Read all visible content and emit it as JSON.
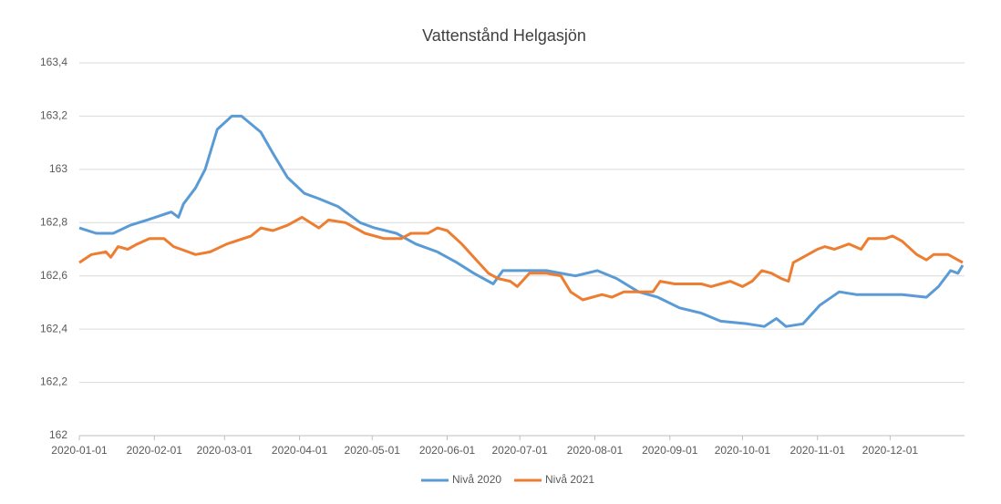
{
  "chart_data": {
    "type": "line",
    "title": "Vattenstånd Helgasjön",
    "xlim": [
      "2020-01-01",
      "2020-12-31"
    ],
    "xticks": [
      "2020-01-01",
      "2020-02-01",
      "2020-03-01",
      "2020-04-01",
      "2020-05-01",
      "2020-06-01",
      "2020-07-01",
      "2020-08-01",
      "2020-09-01",
      "2020-10-01",
      "2020-11-01",
      "2020-12-01"
    ],
    "ylim": [
      162,
      163.4
    ],
    "yticks": [
      162,
      {
        "value": 162.2,
        "label": "162,2"
      },
      {
        "value": 162.4,
        "label": "162,4"
      },
      {
        "value": 162.6,
        "label": "162,6"
      },
      {
        "value": 162.8,
        "label": "162,8"
      },
      163,
      {
        "value": 163.2,
        "label": "163,2"
      },
      {
        "value": 163.4,
        "label": "163,4"
      }
    ],
    "grid": true,
    "legend": "bottom",
    "series": [
      {
        "name": "Nivå 2020",
        "color": "#5b9bd5",
        "x": [
          "2020-01-01",
          "2020-01-08",
          "2020-01-15",
          "2020-01-22",
          "2020-01-29",
          "2020-02-08",
          "2020-02-11",
          "2020-02-13",
          "2020-02-18",
          "2020-02-22",
          "2020-02-27",
          "2020-03-04",
          "2020-03-08",
          "2020-03-16",
          "2020-03-21",
          "2020-03-27",
          "2020-04-03",
          "2020-04-09",
          "2020-04-17",
          "2020-04-26",
          "2020-05-02",
          "2020-05-11",
          "2020-05-19",
          "2020-05-28",
          "2020-06-05",
          "2020-06-12",
          "2020-06-20",
          "2020-06-24",
          "2020-07-01",
          "2020-07-12",
          "2020-07-24",
          "2020-08-02",
          "2020-08-10",
          "2020-08-19",
          "2020-08-27",
          "2020-09-05",
          "2020-09-14",
          "2020-09-22",
          "2020-10-03",
          "2020-10-10",
          "2020-10-15",
          "2020-10-19",
          "2020-10-26",
          "2020-11-02",
          "2020-11-10",
          "2020-11-17",
          "2020-11-25",
          "2020-12-06",
          "2020-12-16",
          "2020-12-21",
          "2020-12-26",
          "2020-12-29",
          "2020-12-31"
        ],
        "values": [
          162.78,
          162.76,
          162.76,
          162.79,
          162.81,
          162.84,
          162.82,
          162.87,
          162.93,
          163.0,
          163.15,
          163.2,
          163.2,
          163.14,
          163.06,
          162.97,
          162.91,
          162.89,
          162.86,
          162.8,
          162.78,
          162.76,
          162.72,
          162.69,
          162.65,
          162.61,
          162.57,
          162.62,
          162.62,
          162.62,
          162.6,
          162.62,
          162.59,
          162.54,
          162.52,
          162.48,
          162.46,
          162.43,
          162.42,
          162.41,
          162.44,
          162.41,
          162.42,
          162.49,
          162.54,
          162.53,
          162.53,
          162.53,
          162.52,
          162.56,
          162.62,
          162.61,
          162.64
        ]
      },
      {
        "name": "Nivå 2021",
        "color": "#ed7d31",
        "x": [
          "2020-01-01",
          "2020-01-06",
          "2020-01-12",
          "2020-01-14",
          "2020-01-17",
          "2020-01-21",
          "2020-01-25",
          "2020-01-30",
          "2020-02-05",
          "2020-02-09",
          "2020-02-15",
          "2020-02-18",
          "2020-02-24",
          "2020-03-02",
          "2020-03-12",
          "2020-03-16",
          "2020-03-21",
          "2020-03-27",
          "2020-04-02",
          "2020-04-09",
          "2020-04-13",
          "2020-04-20",
          "2020-04-28",
          "2020-05-06",
          "2020-05-13",
          "2020-05-17",
          "2020-05-24",
          "2020-05-28",
          "2020-06-01",
          "2020-06-07",
          "2020-06-12",
          "2020-06-18",
          "2020-06-22",
          "2020-06-27",
          "2020-06-30",
          "2020-07-05",
          "2020-07-12",
          "2020-07-18",
          "2020-07-22",
          "2020-07-27",
          "2020-08-04",
          "2020-08-08",
          "2020-08-13",
          "2020-08-25",
          "2020-08-28",
          "2020-09-03",
          "2020-09-14",
          "2020-09-18",
          "2020-09-22",
          "2020-09-26",
          "2020-10-01",
          "2020-10-05",
          "2020-10-09",
          "2020-10-13",
          "2020-10-17",
          "2020-10-20",
          "2020-10-22",
          "2020-10-26",
          "2020-11-01",
          "2020-11-04",
          "2020-11-08",
          "2020-11-14",
          "2020-11-19",
          "2020-11-22",
          "2020-11-29",
          "2020-12-02",
          "2020-12-06",
          "2020-12-12",
          "2020-12-16",
          "2020-12-19",
          "2020-12-25",
          "2020-12-29",
          "2020-12-31"
        ],
        "values": [
          162.65,
          162.68,
          162.69,
          162.67,
          162.71,
          162.7,
          162.72,
          162.74,
          162.74,
          162.71,
          162.69,
          162.68,
          162.69,
          162.72,
          162.75,
          162.78,
          162.77,
          162.79,
          162.82,
          162.78,
          162.81,
          162.8,
          162.76,
          162.74,
          162.74,
          162.76,
          162.76,
          162.78,
          162.77,
          162.72,
          162.67,
          162.61,
          162.59,
          162.58,
          162.56,
          162.61,
          162.61,
          162.6,
          162.54,
          162.51,
          162.53,
          162.52,
          162.54,
          162.54,
          162.58,
          162.57,
          162.57,
          162.56,
          162.57,
          162.58,
          162.56,
          162.58,
          162.62,
          162.61,
          162.59,
          162.58,
          162.65,
          162.67,
          162.7,
          162.71,
          162.7,
          162.72,
          162.7,
          162.74,
          162.74,
          162.75,
          162.73,
          162.68,
          162.66,
          162.68,
          162.68,
          162.66,
          162.65
        ]
      }
    ]
  }
}
